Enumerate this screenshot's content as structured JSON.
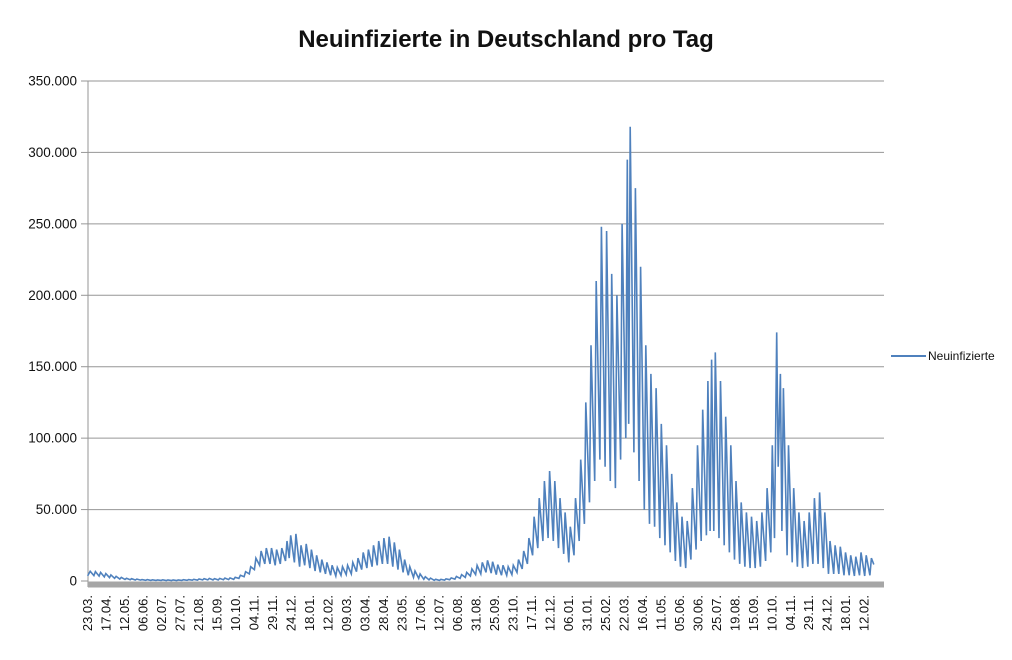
{
  "title": "Neuinfizierte in Deutschland pro Tag",
  "legend": {
    "series_label": "Neuinfizierte"
  },
  "colors": {
    "series": "#4F81BD",
    "gridline": "#969696",
    "axis_bar": "#A6A6A6",
    "text": "#111111"
  },
  "chart_data": {
    "type": "line",
    "title": "Neuinfizierte in Deutschland pro Tag",
    "series_name": "Neuinfizierte",
    "ylabel": "",
    "xlabel": "",
    "grid": true,
    "legend_position": "right",
    "y_max": 350000,
    "y_tick_labels": [
      "0",
      "50.000",
      "100.000",
      "150.000",
      "200.000",
      "250.000",
      "300.000",
      "350.000"
    ],
    "x_label_interval_days": 25,
    "x_total_days": 1072,
    "x_tick_labels": [
      "23.03.",
      "17.04.",
      "12.05.",
      "06.06.",
      "02.07.",
      "27.07.",
      "21.08.",
      "15.09.",
      "10.10.",
      "04.11.",
      "29.11.",
      "24.12.",
      "18.01.",
      "12.02.",
      "09.03.",
      "03.04.",
      "28.04.",
      "23.05.",
      "17.06.",
      "12.07.",
      "06.08.",
      "31.08.",
      "25.09.",
      "23.10.",
      "17.11.",
      "12.12.",
      "06.01.",
      "31.01.",
      "25.02.",
      "22.03.",
      "16.04.",
      "11.05.",
      "05.06.",
      "30.06.",
      "25.07.",
      "19.08.",
      "15.09.",
      "10.10.",
      "04.11.",
      "29.11.",
      "24.12.",
      "18.01.",
      "12.02."
    ],
    "points": [
      [
        0,
        4000
      ],
      [
        3,
        6800
      ],
      [
        8,
        3800
      ],
      [
        10,
        6600
      ],
      [
        15,
        3400
      ],
      [
        17,
        6000
      ],
      [
        22,
        2900
      ],
      [
        24,
        5200
      ],
      [
        29,
        2400
      ],
      [
        31,
        4300
      ],
      [
        36,
        1900
      ],
      [
        38,
        3300
      ],
      [
        43,
        1400
      ],
      [
        45,
        2500
      ],
      [
        50,
        1100
      ],
      [
        52,
        1900
      ],
      [
        57,
        900
      ],
      [
        59,
        1600
      ],
      [
        64,
        700
      ],
      [
        66,
        1300
      ],
      [
        71,
        600
      ],
      [
        73,
        1000
      ],
      [
        78,
        500
      ],
      [
        80,
        950
      ],
      [
        85,
        450
      ],
      [
        87,
        850
      ],
      [
        92,
        420
      ],
      [
        94,
        800
      ],
      [
        99,
        400
      ],
      [
        101,
        850
      ],
      [
        106,
        380
      ],
      [
        108,
        800
      ],
      [
        113,
        350
      ],
      [
        115,
        750
      ],
      [
        120,
        380
      ],
      [
        122,
        800
      ],
      [
        127,
        420
      ],
      [
        129,
        900
      ],
      [
        134,
        480
      ],
      [
        136,
        1000
      ],
      [
        141,
        550
      ],
      [
        143,
        1200
      ],
      [
        148,
        650
      ],
      [
        150,
        1400
      ],
      [
        155,
        750
      ],
      [
        157,
        1600
      ],
      [
        162,
        800
      ],
      [
        164,
        1800
      ],
      [
        169,
        750
      ],
      [
        171,
        1700
      ],
      [
        176,
        800
      ],
      [
        178,
        1800
      ],
      [
        183,
        900
      ],
      [
        185,
        2000
      ],
      [
        190,
        1000
      ],
      [
        192,
        2200
      ],
      [
        197,
        1100
      ],
      [
        199,
        2600
      ],
      [
        204,
        1800
      ],
      [
        206,
        4000
      ],
      [
        211,
        3000
      ],
      [
        213,
        6500
      ],
      [
        218,
        5000
      ],
      [
        220,
        10000
      ],
      [
        225,
        8000
      ],
      [
        227,
        16000
      ],
      [
        232,
        11000
      ],
      [
        234,
        21000
      ],
      [
        239,
        12000
      ],
      [
        241,
        23000
      ],
      [
        246,
        12000
      ],
      [
        248,
        23000
      ],
      [
        253,
        11000
      ],
      [
        255,
        22000
      ],
      [
        260,
        12000
      ],
      [
        262,
        23000
      ],
      [
        267,
        14000
      ],
      [
        269,
        28000
      ],
      [
        272,
        16000
      ],
      [
        274,
        32000
      ],
      [
        279,
        13000
      ],
      [
        281,
        33000
      ],
      [
        286,
        10000
      ],
      [
        288,
        25000
      ],
      [
        293,
        11000
      ],
      [
        295,
        26000
      ],
      [
        300,
        9000
      ],
      [
        302,
        22000
      ],
      [
        307,
        7000
      ],
      [
        309,
        18000
      ],
      [
        314,
        6000
      ],
      [
        316,
        15000
      ],
      [
        321,
        5000
      ],
      [
        323,
        13000
      ],
      [
        328,
        4000
      ],
      [
        330,
        11000
      ],
      [
        335,
        3500
      ],
      [
        337,
        9500
      ],
      [
        342,
        4000
      ],
      [
        344,
        10000
      ],
      [
        349,
        4500
      ],
      [
        351,
        11000
      ],
      [
        356,
        5000
      ],
      [
        358,
        13000
      ],
      [
        363,
        6500
      ],
      [
        365,
        16000
      ],
      [
        370,
        8000
      ],
      [
        372,
        20000
      ],
      [
        377,
        9000
      ],
      [
        379,
        22000
      ],
      [
        384,
        10000
      ],
      [
        386,
        25000
      ],
      [
        391,
        11000
      ],
      [
        393,
        28000
      ],
      [
        398,
        12000
      ],
      [
        400,
        30000
      ],
      [
        405,
        12000
      ],
      [
        407,
        31000
      ],
      [
        412,
        10000
      ],
      [
        414,
        27000
      ],
      [
        419,
        8000
      ],
      [
        421,
        22000
      ],
      [
        426,
        6000
      ],
      [
        428,
        15000
      ],
      [
        433,
        4000
      ],
      [
        435,
        10000
      ],
      [
        440,
        2500
      ],
      [
        442,
        7000
      ],
      [
        447,
        1800
      ],
      [
        449,
        5000
      ],
      [
        454,
        1200
      ],
      [
        456,
        3000
      ],
      [
        461,
        800
      ],
      [
        463,
        2000
      ],
      [
        468,
        500
      ],
      [
        470,
        1200
      ],
      [
        475,
        400
      ],
      [
        477,
        1100
      ],
      [
        482,
        600
      ],
      [
        484,
        1500
      ],
      [
        489,
        900
      ],
      [
        491,
        2200
      ],
      [
        496,
        1300
      ],
      [
        498,
        3200
      ],
      [
        503,
        1800
      ],
      [
        505,
        4500
      ],
      [
        510,
        2500
      ],
      [
        512,
        6000
      ],
      [
        517,
        3500
      ],
      [
        519,
        8500
      ],
      [
        524,
        4500
      ],
      [
        526,
        11000
      ],
      [
        531,
        5000
      ],
      [
        533,
        13000
      ],
      [
        538,
        6000
      ],
      [
        540,
        14500
      ],
      [
        545,
        5500
      ],
      [
        547,
        13500
      ],
      [
        552,
        4500
      ],
      [
        554,
        11500
      ],
      [
        559,
        4000
      ],
      [
        561,
        11000
      ],
      [
        566,
        4000
      ],
      [
        568,
        10000
      ],
      [
        573,
        4500
      ],
      [
        575,
        11000
      ],
      [
        580,
        6000
      ],
      [
        582,
        15000
      ],
      [
        587,
        8500
      ],
      [
        589,
        21000
      ],
      [
        594,
        12000
      ],
      [
        596,
        30000
      ],
      [
        601,
        18000
      ],
      [
        603,
        45000
      ],
      [
        608,
        23000
      ],
      [
        610,
        58000
      ],
      [
        615,
        28000
      ],
      [
        617,
        70000
      ],
      [
        622,
        30000
      ],
      [
        624,
        77000
      ],
      [
        629,
        28000
      ],
      [
        631,
        70000
      ],
      [
        636,
        23000
      ],
      [
        638,
        58000
      ],
      [
        643,
        19000
      ],
      [
        645,
        48000
      ],
      [
        650,
        13000
      ],
      [
        652,
        38000
      ],
      [
        657,
        18000
      ],
      [
        659,
        58000
      ],
      [
        664,
        28000
      ],
      [
        666,
        85000
      ],
      [
        671,
        40000
      ],
      [
        673,
        125000
      ],
      [
        678,
        55000
      ],
      [
        680,
        165000
      ],
      [
        685,
        70000
      ],
      [
        687,
        210000
      ],
      [
        692,
        85000
      ],
      [
        694,
        248000
      ],
      [
        699,
        80000
      ],
      [
        701,
        245000
      ],
      [
        706,
        70000
      ],
      [
        708,
        215000
      ],
      [
        713,
        65000
      ],
      [
        715,
        200000
      ],
      [
        720,
        85000
      ],
      [
        722,
        250000
      ],
      [
        727,
        100000
      ],
      [
        729,
        295000
      ],
      [
        731,
        110000
      ],
      [
        733,
        318000
      ],
      [
        738,
        90000
      ],
      [
        740,
        275000
      ],
      [
        745,
        70000
      ],
      [
        747,
        220000
      ],
      [
        752,
        50000
      ],
      [
        754,
        165000
      ],
      [
        759,
        40000
      ],
      [
        761,
        145000
      ],
      [
        766,
        38000
      ],
      [
        768,
        135000
      ],
      [
        773,
        30000
      ],
      [
        775,
        110000
      ],
      [
        780,
        25000
      ],
      [
        782,
        95000
      ],
      [
        787,
        20000
      ],
      [
        789,
        75000
      ],
      [
        794,
        14000
      ],
      [
        796,
        55000
      ],
      [
        801,
        10000
      ],
      [
        803,
        45000
      ],
      [
        808,
        9000
      ],
      [
        810,
        42000
      ],
      [
        815,
        15000
      ],
      [
        817,
        65000
      ],
      [
        822,
        22000
      ],
      [
        824,
        95000
      ],
      [
        829,
        28000
      ],
      [
        831,
        120000
      ],
      [
        836,
        32000
      ],
      [
        838,
        140000
      ],
      [
        841,
        35000
      ],
      [
        843,
        155000
      ],
      [
        846,
        35000
      ],
      [
        848,
        160000
      ],
      [
        853,
        30000
      ],
      [
        855,
        140000
      ],
      [
        860,
        25000
      ],
      [
        862,
        115000
      ],
      [
        867,
        20000
      ],
      [
        869,
        95000
      ],
      [
        874,
        15000
      ],
      [
        876,
        70000
      ],
      [
        881,
        12000
      ],
      [
        883,
        55000
      ],
      [
        888,
        10000
      ],
      [
        890,
        48000
      ],
      [
        895,
        9000
      ],
      [
        897,
        45000
      ],
      [
        902,
        9000
      ],
      [
        904,
        42000
      ],
      [
        909,
        10000
      ],
      [
        911,
        48000
      ],
      [
        916,
        14000
      ],
      [
        918,
        65000
      ],
      [
        923,
        20000
      ],
      [
        925,
        95000
      ],
      [
        928,
        30000
      ],
      [
        931,
        174000
      ],
      [
        933,
        80000
      ],
      [
        936,
        145000
      ],
      [
        938,
        35000
      ],
      [
        940,
        135000
      ],
      [
        945,
        18000
      ],
      [
        947,
        95000
      ],
      [
        952,
        13000
      ],
      [
        954,
        65000
      ],
      [
        959,
        10000
      ],
      [
        961,
        48000
      ],
      [
        966,
        9000
      ],
      [
        968,
        42000
      ],
      [
        973,
        10000
      ],
      [
        975,
        48000
      ],
      [
        980,
        12000
      ],
      [
        982,
        58000
      ],
      [
        987,
        12000
      ],
      [
        989,
        62000
      ],
      [
        994,
        9000
      ],
      [
        996,
        48000
      ],
      [
        1001,
        5000
      ],
      [
        1003,
        28000
      ],
      [
        1008,
        5000
      ],
      [
        1010,
        25000
      ],
      [
        1015,
        5000
      ],
      [
        1017,
        24000
      ],
      [
        1022,
        4000
      ],
      [
        1024,
        20000
      ],
      [
        1029,
        4000
      ],
      [
        1031,
        18000
      ],
      [
        1036,
        3500
      ],
      [
        1038,
        17000
      ],
      [
        1043,
        4000
      ],
      [
        1045,
        20000
      ],
      [
        1050,
        3500
      ],
      [
        1052,
        18000
      ],
      [
        1057,
        4000
      ],
      [
        1059,
        16000
      ],
      [
        1062,
        12000
      ]
    ]
  }
}
